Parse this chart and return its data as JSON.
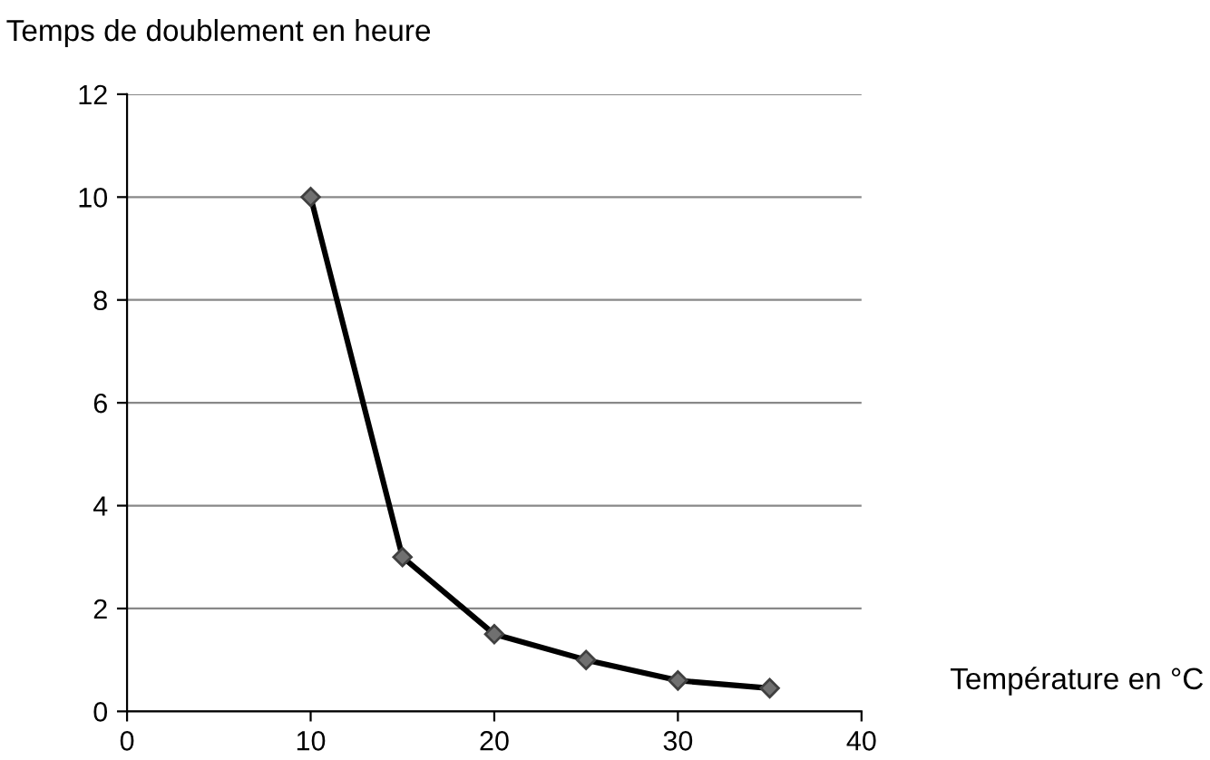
{
  "chart_data": {
    "type": "line",
    "ylabel": "Temps de doublement en heure",
    "xlabel": "Température en °C",
    "x": [
      10,
      15,
      20,
      25,
      30,
      35
    ],
    "series": [
      {
        "color": "#000000",
        "values": [
          10,
          3,
          1.5,
          1,
          0.6,
          0.45
        ]
      }
    ],
    "xlim": [
      0,
      40
    ],
    "xticks": [
      0,
      10,
      20,
      30,
      40
    ],
    "ylim": [
      0,
      12
    ],
    "yticks": [
      0,
      2,
      4,
      6,
      8,
      10,
      12
    ],
    "grid": "y",
    "marker": "diamond",
    "line_style": "solid",
    "legend": false
  }
}
